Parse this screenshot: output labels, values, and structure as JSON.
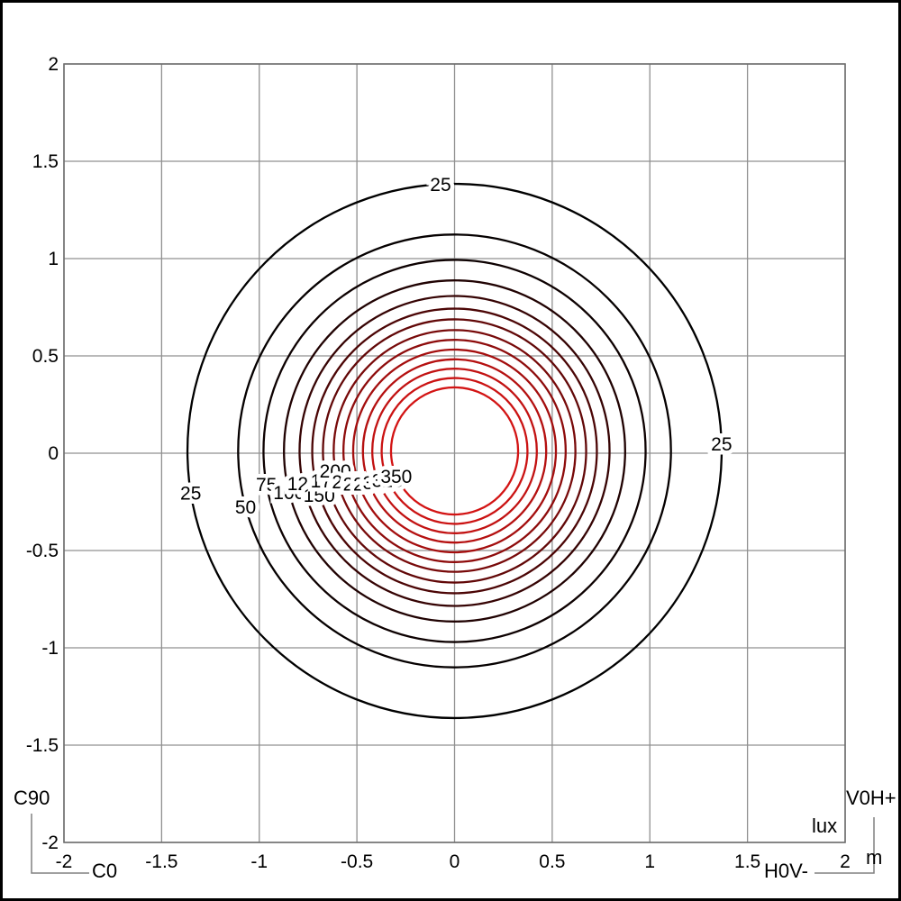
{
  "chart_data": {
    "type": "contour",
    "subject": "isolux-illuminance-diagram",
    "title": "",
    "grid": true,
    "x": {
      "min": -2,
      "max": 2,
      "tick_step": 0.5,
      "unit": "m",
      "tick_labels": [
        "-2",
        "-1.5",
        "-1",
        "-0.5",
        "0",
        "0.5",
        "1",
        "1.5",
        "2"
      ],
      "tick_values": [
        -2,
        -1.5,
        -1,
        -0.5,
        0,
        0.5,
        1,
        1.5,
        2
      ]
    },
    "y": {
      "min": -2,
      "max": 2,
      "tick_step": 0.5,
      "unit": "m",
      "tick_labels": [
        "2",
        "1.5",
        "1",
        "0.5",
        "0",
        "-0.5",
        "-1",
        "-1.5",
        "-2"
      ],
      "tick_values": [
        2,
        1.5,
        1,
        0.5,
        0,
        -0.5,
        -1,
        -1.5,
        -2
      ]
    },
    "value_unit": "lux",
    "center": [
      0,
      0
    ],
    "levels": [
      {
        "value": 25,
        "radius_m": 1.37,
        "color": "#000000",
        "labels": [
          {
            "angle_deg": 267
          },
          {
            "angle_deg": 171
          },
          {
            "angle_deg": -1.5
          }
        ]
      },
      {
        "value": 50,
        "radius_m": 1.11,
        "color": "#050000",
        "labels": [
          {
            "angle_deg": 165
          }
        ]
      },
      {
        "value": 75,
        "radius_m": 0.98,
        "color": "#0d0101",
        "labels": [
          {
            "angle_deg": 170
          }
        ]
      },
      {
        "value": 100,
        "radius_m": 0.875,
        "color": "#200202",
        "labels": [
          {
            "angle_deg": 166
          }
        ]
      },
      {
        "value": 125,
        "radius_m": 0.795,
        "color": "#360404",
        "labels": [
          {
            "angle_deg": 168
          }
        ]
      },
      {
        "value": 150,
        "radius_m": 0.73,
        "color": "#4c0606",
        "labels": [
          {
            "angle_deg": 162
          }
        ]
      },
      {
        "value": 175,
        "radius_m": 0.675,
        "color": "#620808",
        "labels": [
          {
            "angle_deg": 167
          }
        ]
      },
      {
        "value": 200,
        "radius_m": 0.62,
        "color": "#780a0a",
        "labels": [
          {
            "angle_deg": 170.5
          }
        ]
      },
      {
        "value": 225,
        "radius_m": 0.57,
        "color": "#8e0c0c",
        "labels": [
          {
            "angle_deg": 164
          }
        ]
      },
      {
        "value": 250,
        "radius_m": 0.52,
        "color": "#a40e0e",
        "labels": [
          {
            "angle_deg": 161
          }
        ]
      },
      {
        "value": 275,
        "radius_m": 0.47,
        "color": "#b51010",
        "labels": [
          {
            "angle_deg": 159
          }
        ]
      },
      {
        "value": 300,
        "radius_m": 0.422,
        "color": "#c21212",
        "labels": [
          {
            "angle_deg": 157.5
          }
        ]
      },
      {
        "value": 325,
        "radius_m": 0.374,
        "color": "#cb1313",
        "labels": [
          {
            "angle_deg": 156.5
          }
        ]
      },
      {
        "value": 350,
        "radius_m": 0.326,
        "color": "#d31414",
        "labels": [
          {
            "angle_deg": 156.4
          }
        ]
      }
    ],
    "layout": {
      "legend": "none",
      "grid_color": "#909090",
      "frame_color": "#6e6e6e"
    }
  },
  "annotations": {
    "c90": "C90",
    "c0": "C0",
    "v0h_plus": "V0H+",
    "h0v_minus": "H0V-",
    "lux_unit": "lux",
    "meter_unit": "m"
  }
}
